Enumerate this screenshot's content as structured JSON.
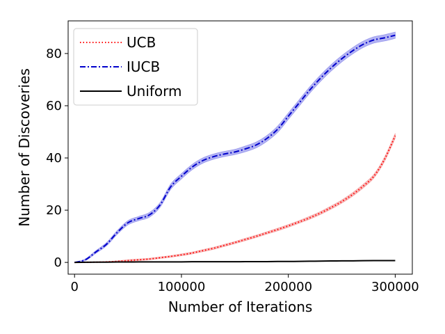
{
  "chart_data": {
    "type": "line",
    "title": "",
    "xlabel": "Number of Iterations",
    "ylabel": "Number of Discoveries",
    "xlim": [
      -6000,
      316000
    ],
    "ylim": [
      -4.5,
      92.5
    ],
    "xticks": [
      0,
      100000,
      200000,
      300000
    ],
    "xtick_labels": [
      "0",
      "100000",
      "200000",
      "300000"
    ],
    "yticks": [
      0,
      20,
      40,
      60,
      80
    ],
    "ytick_labels": [
      "0",
      "20",
      "40",
      "60",
      "80"
    ],
    "grid": false,
    "legend_position": "top-left",
    "x": [
      0,
      10000,
      20000,
      30000,
      40000,
      50000,
      60000,
      70000,
      80000,
      90000,
      100000,
      110000,
      120000,
      130000,
      140000,
      150000,
      160000,
      170000,
      180000,
      190000,
      200000,
      210000,
      220000,
      230000,
      240000,
      250000,
      260000,
      270000,
      280000,
      290000,
      300000
    ],
    "series": [
      {
        "name": "UCB",
        "color": "#ff0000",
        "band_color": "#f4a6a6",
        "line_style": "dotted",
        "values": [
          0,
          0.05,
          0.1,
          0.2,
          0.4,
          0.7,
          1.0,
          1.3,
          1.8,
          2.3,
          2.9,
          3.6,
          4.5,
          5.4,
          6.5,
          7.6,
          8.8,
          10.0,
          11.3,
          12.6,
          14.0,
          15.5,
          17.1,
          18.9,
          21.0,
          23.3,
          26.0,
          29.2,
          33.0,
          39.5,
          48.5
        ],
        "band": [
          0,
          0.05,
          0.1,
          0.15,
          0.2,
          0.3,
          0.3,
          0.3,
          0.3,
          0.3,
          0.35,
          0.35,
          0.4,
          0.4,
          0.4,
          0.4,
          0.45,
          0.45,
          0.45,
          0.5,
          0.5,
          0.5,
          0.55,
          0.55,
          0.6,
          0.6,
          0.65,
          0.7,
          0.7,
          0.8,
          0.9
        ]
      },
      {
        "name": "IUCB",
        "color": "#0000cc",
        "band_color": "#9999ee",
        "line_style": "dashdot",
        "values": [
          0,
          1.0,
          4.0,
          7.0,
          11.5,
          15.2,
          16.8,
          18.2,
          22.0,
          29.0,
          33.0,
          36.5,
          39.0,
          40.5,
          41.5,
          42.3,
          43.5,
          45.0,
          47.5,
          51.0,
          56.0,
          61.0,
          66.0,
          70.5,
          74.5,
          78.0,
          81.0,
          83.5,
          85.2,
          86.0,
          87.0
        ],
        "band": [
          0,
          0.3,
          0.5,
          0.6,
          0.7,
          0.8,
          0.8,
          0.9,
          0.9,
          1.0,
          1.0,
          1.0,
          1.0,
          1.0,
          1.0,
          1.0,
          1.1,
          1.1,
          1.1,
          1.2,
          1.2,
          1.2,
          1.2,
          1.2,
          1.2,
          1.2,
          1.2,
          1.2,
          1.2,
          1.2,
          1.2
        ]
      },
      {
        "name": "Uniform",
        "color": "#000000",
        "line_style": "solid",
        "values": [
          0,
          0.05,
          0.1,
          0.1,
          0.15,
          0.15,
          0.2,
          0.2,
          0.2,
          0.2,
          0.2,
          0.25,
          0.25,
          0.25,
          0.25,
          0.25,
          0.3,
          0.3,
          0.3,
          0.35,
          0.35,
          0.4,
          0.45,
          0.5,
          0.55,
          0.6,
          0.6,
          0.65,
          0.7,
          0.7,
          0.7
        ]
      }
    ]
  }
}
